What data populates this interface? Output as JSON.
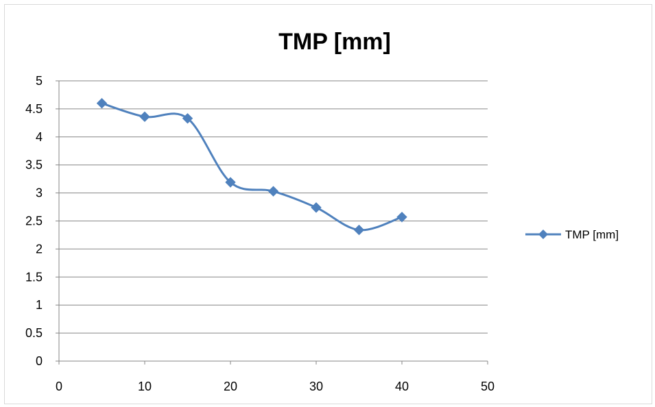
{
  "chart_data": {
    "type": "line",
    "title": "TMP [mm]",
    "xlabel": "",
    "ylabel": "",
    "xlim": [
      0,
      50
    ],
    "ylim": [
      0,
      5
    ],
    "x_ticks": [
      "0",
      "10",
      "20",
      "30",
      "40",
      "50"
    ],
    "y_ticks": [
      "0",
      "0.5",
      "1",
      "1.5",
      "2",
      "2.5",
      "3",
      "3.5",
      "4",
      "4.5",
      "5"
    ],
    "grid": "horizontal",
    "smooth": true,
    "legend_position": "right",
    "series": [
      {
        "name": "TMP [mm]",
        "color": "#4f81bd",
        "marker": "diamond",
        "points": [
          {
            "x": 5,
            "y": 4.6
          },
          {
            "x": 10,
            "y": 4.36
          },
          {
            "x": 15,
            "y": 4.33
          },
          {
            "x": 20,
            "y": 3.19
          },
          {
            "x": 25,
            "y": 3.03
          },
          {
            "x": 30,
            "y": 2.74
          },
          {
            "x": 35,
            "y": 2.34
          },
          {
            "x": 40,
            "y": 2.57
          }
        ]
      }
    ]
  }
}
